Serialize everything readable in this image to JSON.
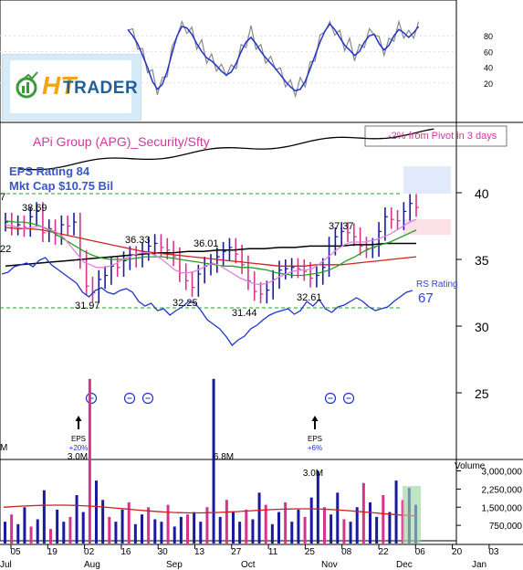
{
  "title": "APi Group (APG)_Security/Sfty",
  "eps_rating": "EPS Rating 84",
  "market_cap": "Mkt Cap $10.75 Bil",
  "pivot_note": "-2% from Pivot in 3 days",
  "rs_rating_label": "RS Rating",
  "rs_rating_value": "67",
  "volume_label": "Volume",
  "logo": {
    "ht": "HT",
    "text": "TRADER"
  },
  "colors": {
    "up_bar": "#1a1aa0",
    "down_bar": "#d6338a",
    "ma_10": "#e080e0",
    "ma_21": "#22a022",
    "ma_50": "#d02020",
    "ma_200": "#000000",
    "rs_line": "#2233cc",
    "volume_avg": "#d02020",
    "pivot_text": "#d4359e"
  },
  "chart_data": {
    "type": "line",
    "price_axis": {
      "ticks": [
        "40",
        "35",
        "30",
        "25"
      ],
      "range": [
        21,
        43
      ]
    },
    "stochastic_axis": {
      "ticks": [
        "80",
        "60",
        "40",
        "20"
      ],
      "range": [
        0,
        100
      ]
    },
    "volume_axis": {
      "ticks": [
        "3,000,000",
        "2,250,000",
        "1,500,000",
        "750,000"
      ],
      "range": [
        0,
        3500000
      ]
    },
    "x_ticks": [
      "05",
      "19",
      "02",
      "16",
      "30",
      "13",
      "27",
      "11",
      "25",
      "08",
      "22",
      "06",
      "20",
      "03"
    ],
    "months": [
      "Jul",
      "Aug",
      "Sep",
      "Oct",
      "Nov",
      "Dec",
      "Jan"
    ],
    "price_labels": [
      "38.69",
      "31.97",
      "36.33",
      "32.25",
      "36.01",
      "31.44",
      "32.61",
      "37.37"
    ],
    "volume_labels": [
      "3.0M",
      "6.8M",
      "3.0M"
    ],
    "events": [
      {
        "label": "EPS",
        "change": "+20%"
      },
      {
        "label": "EPS",
        "change": "+6%"
      }
    ],
    "edge_labels": {
      "left_price_1": "7",
      "left_price_2": "22",
      "left_volume": "M"
    },
    "closes": [
      37.8,
      37.5,
      37.6,
      37.4,
      38.2,
      38.6,
      37.0,
      37.3,
      36.8,
      37.6,
      37.5,
      37.8,
      35.0,
      33.0,
      32.5,
      33.5,
      33.8,
      34.5,
      34.4,
      34.9,
      35.3,
      35.1,
      35.6,
      36.0,
      36.2,
      35.9,
      35.7,
      35.2,
      34.0,
      33.4,
      32.9,
      33.9,
      34.5,
      34.7,
      35.2,
      35.6,
      35.9,
      35.4,
      34.6,
      33.4,
      32.6,
      32.4,
      32.7,
      33.5,
      34.2,
      34.3,
      34.4,
      34.3,
      34.1,
      33.6,
      33.8,
      34.4,
      36.0,
      36.7,
      37.1,
      37.0,
      36.7,
      36.0,
      35.8,
      35.9,
      37.1,
      38.2,
      38.0,
      37.9,
      38.6,
      39.2,
      38.9
    ],
    "ma10": [
      37.6,
      37.5,
      37.4,
      37.3,
      37.4,
      37.5,
      37.4,
      37.2,
      37.0,
      36.6,
      36.0,
      35.4,
      34.8,
      34.6,
      34.4,
      34.4,
      34.5,
      34.7,
      35.0,
      35.2,
      35.4,
      35.5,
      35.5,
      35.3,
      35.0,
      34.6,
      34.2,
      34.0,
      34.0,
      34.1,
      34.3,
      34.6,
      34.7,
      34.5,
      34.2,
      33.9,
      33.6,
      33.4,
      33.2,
      33.1,
      33.2,
      33.4,
      33.7,
      33.9,
      34.1,
      34.2,
      34.2,
      34.3,
      34.6,
      35.0,
      35.4,
      35.8,
      36.1,
      36.3,
      36.3,
      36.3,
      36.4,
      36.5,
      36.7,
      36.9,
      37.2,
      37.5,
      37.8,
      38.0
    ],
    "ma21": [
      37.9,
      37.8,
      37.8,
      37.7,
      37.5,
      37.2,
      36.8,
      36.4,
      36.0,
      35.6,
      35.3,
      35.1,
      35.0,
      35.0,
      35.0,
      35.1,
      35.2,
      35.2,
      35.2,
      35.1,
      35.0,
      34.9,
      34.8,
      34.7,
      34.6,
      34.5,
      34.5,
      34.4,
      34.4,
      34.3,
      34.2,
      34.0,
      33.9,
      33.8,
      33.8,
      33.9,
      34.0,
      34.2,
      34.5,
      34.9,
      35.2,
      35.6,
      35.9,
      36.1,
      36.3,
      36.6,
      36.9,
      37.2
    ],
    "ma50": [
      37.4,
      37.3,
      37.3,
      37.2,
      37.0,
      36.8,
      36.6,
      36.4,
      36.2,
      36.0,
      35.8,
      35.6,
      35.5,
      35.4,
      35.3,
      35.2,
      35.1,
      35.0,
      34.9,
      34.8,
      34.7,
      34.6,
      34.5,
      34.5,
      34.5,
      34.6,
      34.6,
      34.6,
      34.7,
      34.8,
      34.9,
      35.0,
      35.1,
      35.2
    ],
    "ma200": [
      34.5,
      34.6,
      34.7,
      34.8,
      34.9,
      35.0,
      35.1,
      35.2,
      35.3,
      35.4,
      35.5,
      35.5,
      35.6,
      35.6,
      35.7,
      35.7,
      35.8,
      35.8,
      35.9,
      35.9,
      36.0,
      36.0,
      36.0,
      36.1,
      36.1,
      36.2,
      36.2,
      36.2
    ]
  }
}
